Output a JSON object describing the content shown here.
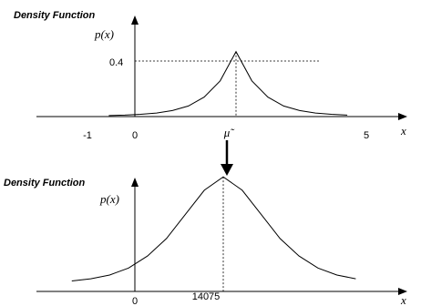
{
  "chart_data": [
    {
      "type": "line",
      "title": "Density Function",
      "ylabel": "p(x)",
      "xlabel": "x",
      "x_tick_labels": [
        "-1",
        "0",
        "5"
      ],
      "y_tick_labels": [
        "0.4"
      ],
      "mean_label": "μ̃",
      "series": [
        {
          "x": [
            -2.0,
            -1.5,
            -1.0,
            -0.5,
            0.0,
            0.5,
            1.0,
            1.5,
            2.0,
            2.5,
            3.0,
            3.5,
            4.0,
            4.5,
            5.0,
            5.5
          ],
          "y": [
            0.006,
            0.009,
            0.014,
            0.022,
            0.037,
            0.065,
            0.12,
            0.22,
            0.4,
            0.22,
            0.12,
            0.065,
            0.037,
            0.022,
            0.014,
            0.009
          ]
        }
      ],
      "peak": {
        "x": 2.0,
        "y": 0.4
      },
      "xlim": [
        -2.5,
        6.5
      ],
      "ylim": [
        0,
        0.55
      ]
    },
    {
      "type": "line",
      "title": "Density Function",
      "ylabel": "p(x)",
      "xlabel": "x",
      "x_tick_labels": [
        "0",
        "14075"
      ],
      "series": [
        {
          "x": [
            -2.0,
            -1.5,
            -1.0,
            -0.5,
            0.0,
            0.5,
            1.0,
            1.5,
            2.0,
            2.5,
            3.0,
            3.5,
            4.0,
            4.5,
            5.0,
            5.5
          ],
          "y": [
            0.012,
            0.02,
            0.034,
            0.06,
            0.105,
            0.17,
            0.26,
            0.35,
            0.4,
            0.35,
            0.26,
            0.17,
            0.105,
            0.06,
            0.034,
            0.02
          ]
        }
      ],
      "peak": {
        "x": 2.0,
        "y": 0.4
      },
      "xlim": [
        -2.5,
        6.5
      ],
      "ylim": [
        0,
        0.55
      ]
    }
  ]
}
